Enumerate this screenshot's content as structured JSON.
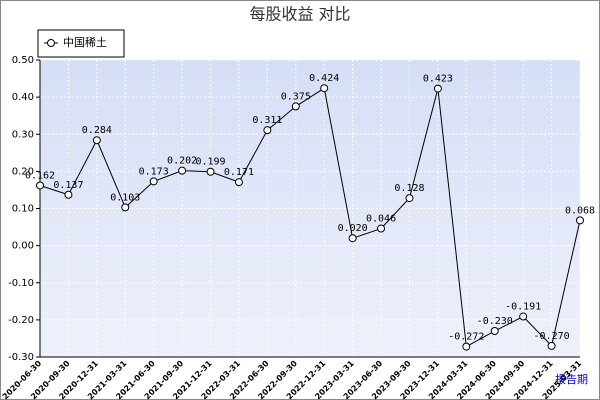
{
  "chart_data": {
    "type": "line",
    "title": "每股收益  对比",
    "x_label": "报告期",
    "categories": [
      "2020-06-30",
      "2020-09-30",
      "2020-12-31",
      "2021-03-31",
      "2021-06-30",
      "2021-09-30",
      "2021-12-31",
      "2022-03-31",
      "2022-06-30",
      "2022-09-30",
      "2022-12-31",
      "2023-03-31",
      "2023-06-30",
      "2023-09-30",
      "2023-12-31",
      "2024-03-31",
      "2024-06-30",
      "2024-09-30",
      "2024-12-31",
      "2025-03-31"
    ],
    "series": [
      {
        "name": "中国稀土",
        "color": "#000000",
        "values": [
          0.162,
          0.137,
          0.284,
          0.103,
          0.173,
          0.202,
          0.199,
          0.171,
          0.311,
          0.375,
          0.424,
          0.02,
          0.046,
          0.128,
          0.423,
          -0.272,
          -0.23,
          -0.191,
          -0.27,
          0.068
        ],
        "value_labels": [
          "0.162",
          "0.137",
          "0.284",
          "0.103",
          "0.173",
          "0.202",
          "0.199",
          "0.171",
          "0.311",
          "0.375",
          "0.424",
          "0.020",
          "0.046",
          "0.128",
          "0.423",
          "-0.272",
          "-0.230",
          "-0.191",
          "-0.270",
          "0.068"
        ]
      }
    ],
    "ylim": [
      -0.3,
      0.5
    ],
    "yticks": [
      {
        "value": 0.5,
        "label": "0.50"
      },
      {
        "value": 0.4,
        "label": "0.40"
      },
      {
        "value": 0.3,
        "label": "0.30"
      },
      {
        "value": 0.2,
        "label": "0.20"
      },
      {
        "value": 0.1,
        "label": "0.10"
      },
      {
        "value": 0,
        "label": "0.00"
      },
      {
        "value": -0.1,
        "label": "-0.10"
      },
      {
        "value": -0.2,
        "label": "-0.20"
      },
      {
        "value": -0.3,
        "label": "-0.30"
      }
    ],
    "grid": true,
    "legend": "top-left"
  }
}
